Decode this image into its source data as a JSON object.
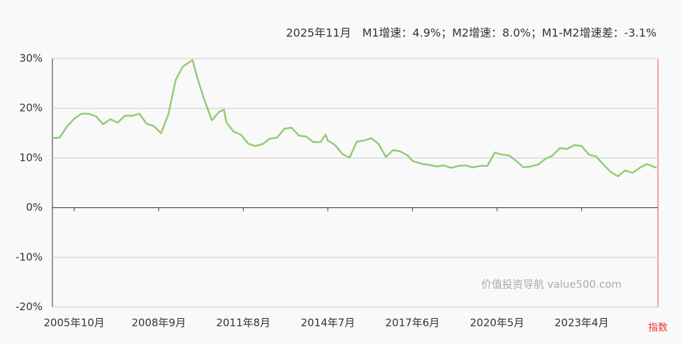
{
  "chart_data": {
    "type": "line",
    "title": "2025年11月　M1增速：4.9%；M2增速：8.0%；M1-M2增速差：-3.1%",
    "watermark": "价值投资导航 value500.com",
    "right_axis_label": "指数",
    "x": [
      "2005年1月",
      "2005年4月",
      "2005年7月",
      "2005年10月",
      "2006年1月",
      "2006年4月",
      "2006年7月",
      "2006年10月",
      "2007年1月",
      "2007年4月",
      "2007年7月",
      "2007年10月",
      "2008年1月",
      "2008年4月",
      "2008年7月",
      "2008年10月",
      "2009年1月",
      "2009年4月",
      "2009年7月",
      "2009年10月",
      "2009年11月",
      "2010年1月",
      "2010年4月",
      "2010年7月",
      "2010年10月",
      "2010年12月",
      "2011年1月",
      "2011年4月",
      "2011年7月",
      "2011年10月",
      "2012年1月",
      "2012年4月",
      "2012年7月",
      "2012年10月",
      "2013年1月",
      "2013年4月",
      "2013年7月",
      "2013年10月",
      "2014年1月",
      "2014年4月",
      "2014年6月",
      "2014年7月",
      "2014年10月",
      "2015年1月",
      "2015年4月",
      "2015年7月",
      "2015年10月",
      "2016年1月",
      "2016年4月",
      "2016年7月",
      "2016年10月",
      "2017年1月",
      "2017年4月",
      "2017年6月",
      "2017年10月",
      "2018年1月",
      "2018年4月",
      "2018年7月",
      "2018年10月",
      "2019年1月",
      "2019年4月",
      "2019年7月",
      "2019年10月",
      "2020年1月",
      "2020年4月",
      "2020年7月",
      "2020年10月",
      "2021年1月",
      "2021年4月",
      "2021年7月",
      "2021年10月",
      "2022年1月",
      "2022年4月",
      "2022年7月",
      "2022年10月",
      "2023年1月",
      "2023年4月",
      "2023年7月",
      "2023年10月",
      "2024年1月",
      "2024年4月",
      "2024年7月",
      "2024年10月",
      "2025年1月",
      "2025年4月",
      "2025年7月",
      "2025年10月",
      "2025年11月"
    ],
    "series": [
      {
        "color": "#91cc75",
        "values": [
          14.0,
          14.1,
          16.3,
          17.9,
          18.9,
          18.9,
          18.4,
          16.8,
          17.8,
          17.1,
          18.5,
          18.5,
          18.9,
          16.9,
          16.4,
          15.0,
          18.8,
          25.7,
          28.4,
          29.4,
          29.7,
          26.1,
          21.5,
          17.6,
          19.3,
          19.7,
          17.2,
          15.3,
          14.7,
          12.9,
          12.4,
          12.8,
          13.9,
          14.1,
          15.9,
          16.1,
          14.5,
          14.3,
          13.2,
          13.2,
          14.7,
          13.5,
          12.6,
          10.8,
          10.1,
          13.3,
          13.5,
          14.0,
          12.8,
          10.2,
          11.6,
          11.3,
          10.5,
          9.4,
          8.8,
          8.6,
          8.3,
          8.5,
          8.0,
          8.4,
          8.5,
          8.1,
          8.4,
          8.4,
          11.1,
          10.7,
          10.5,
          9.4,
          8.1,
          8.3,
          8.7,
          9.8,
          10.5,
          12.0,
          11.8,
          12.6,
          12.4,
          10.7,
          10.3,
          8.7,
          7.2,
          6.3,
          7.5,
          7.0,
          8.0,
          8.8,
          8.2,
          8.0
        ]
      }
    ],
    "xticks": [
      "2005年10月",
      "2008年9月",
      "2011年8月",
      "2014年7月",
      "2017年6月",
      "2020年5月",
      "2023年4月"
    ],
    "ylim": [
      -20,
      30
    ],
    "yticks": [
      {
        "value": -20,
        "label": "-20%"
      },
      {
        "value": -10,
        "label": "-10%"
      },
      {
        "value": 0,
        "label": "0%"
      },
      {
        "value": 10,
        "label": "10%"
      },
      {
        "value": 20,
        "label": "20%"
      },
      {
        "value": 30,
        "label": "30%"
      }
    ],
    "grid": true
  }
}
